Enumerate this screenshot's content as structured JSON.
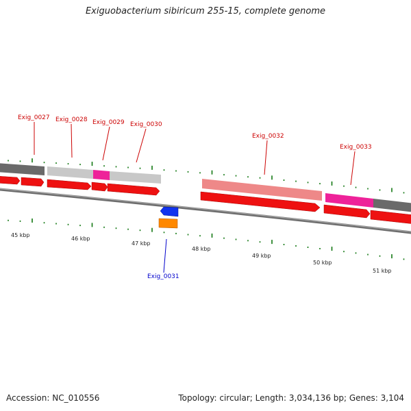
{
  "title": "Exiguobacterium sibiricum 255-15, complete genome",
  "accession": "Accession: NC_010556",
  "summary": "Topology: circular; Length: 3,034,136 bp; Genes: 3,104",
  "colors": {
    "cds": "#ee1111",
    "backbone": "#888888",
    "label_red": "#cc0000",
    "label_blue": "#0000cc",
    "tick": "#117711",
    "blue_feature": "#1133ee",
    "orange_feature": "#ff8800",
    "magenta": "#ee2299",
    "pink": "#ee8888",
    "light_gray": "#c8c8c8",
    "dark_gray": "#707070"
  },
  "scale_labels": [
    "45 kbp",
    "46 kbp",
    "47 kbp",
    "48 kbp",
    "49 kbp",
    "50 kbp",
    "51 kbp"
  ],
  "gene_labels": [
    {
      "id": "Exig_0027",
      "color": "red"
    },
    {
      "id": "Exig_0028",
      "color": "red"
    },
    {
      "id": "Exig_0029",
      "color": "red"
    },
    {
      "id": "Exig_0030",
      "color": "red"
    },
    {
      "id": "Exig_0031",
      "color": "blue"
    },
    {
      "id": "Exig_0032",
      "color": "red"
    },
    {
      "id": "Exig_0033",
      "color": "red"
    }
  ]
}
